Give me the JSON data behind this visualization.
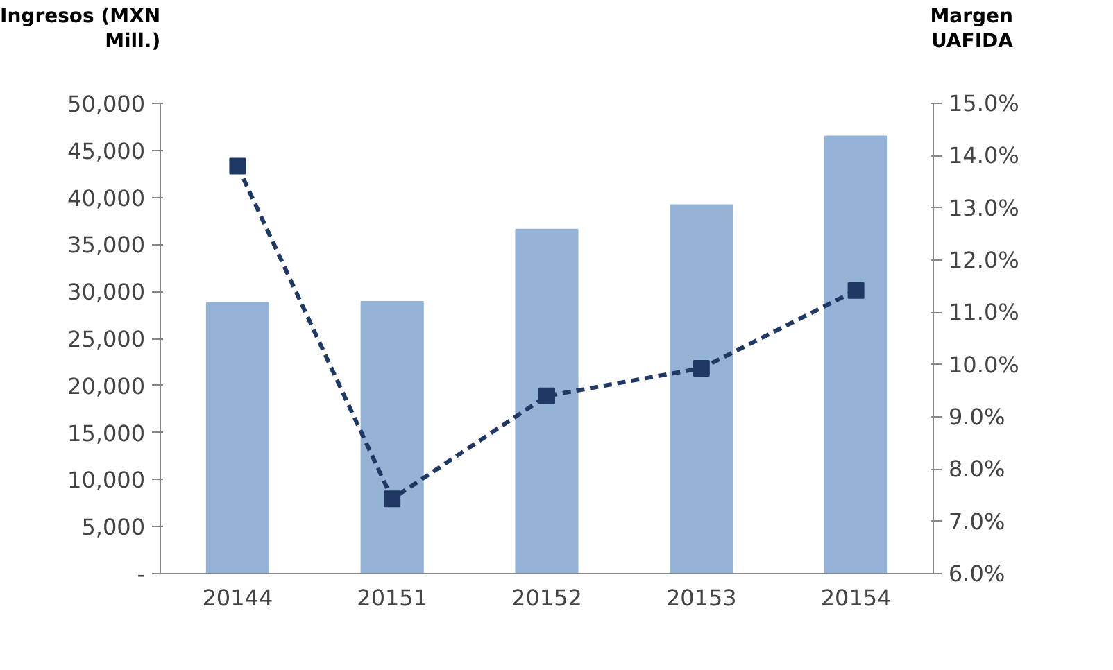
{
  "chart_data": {
    "type": "bar",
    "ylabel": "Ingresos (MXN\nMill.)",
    "y2label": "Margen\nUAFIDA",
    "categories": [
      "20144",
      "20151",
      "20152",
      "20153",
      "20154"
    ],
    "series": [
      {
        "color": "#95b3d7",
        "values": [
          28800,
          28900,
          36600,
          39200,
          46500
        ]
      },
      {
        "type": "line",
        "axis": "y2",
        "color": "#1f3864",
        "marker": "square",
        "line_style": "dashed",
        "values": [
          13.8,
          7.43,
          9.4,
          9.93,
          11.42
        ]
      }
    ],
    "ylim": [
      0,
      50000
    ],
    "yticks": [
      {
        "value": 0,
        "label": "-"
      },
      {
        "value": 5000,
        "label": "5,000"
      },
      {
        "value": 10000,
        "label": "10,000"
      },
      {
        "value": 15000,
        "label": "15,000"
      },
      {
        "value": 20000,
        "label": "20,000"
      },
      {
        "value": 25000,
        "label": "25,000"
      },
      {
        "value": 30000,
        "label": "30,000"
      },
      {
        "value": 35000,
        "label": "35,000"
      },
      {
        "value": 40000,
        "label": "40,000"
      },
      {
        "value": 45000,
        "label": "45,000"
      },
      {
        "value": 50000,
        "label": "50,000"
      }
    ],
    "y2lim": [
      6,
      15
    ],
    "y2ticks": [
      {
        "value": 6,
        "label": "6.0%"
      },
      {
        "value": 7,
        "label": "7.0%"
      },
      {
        "value": 8,
        "label": "8.0%"
      },
      {
        "value": 9,
        "label": "9.0%"
      },
      {
        "value": 10,
        "label": "10.0%"
      },
      {
        "value": 11,
        "label": "11.0%"
      },
      {
        "value": 12,
        "label": "12.0%"
      },
      {
        "value": 13,
        "label": "13.0%"
      },
      {
        "value": 14,
        "label": "14.0%"
      },
      {
        "value": 15,
        "label": "15.0%"
      }
    ],
    "grid": false
  }
}
